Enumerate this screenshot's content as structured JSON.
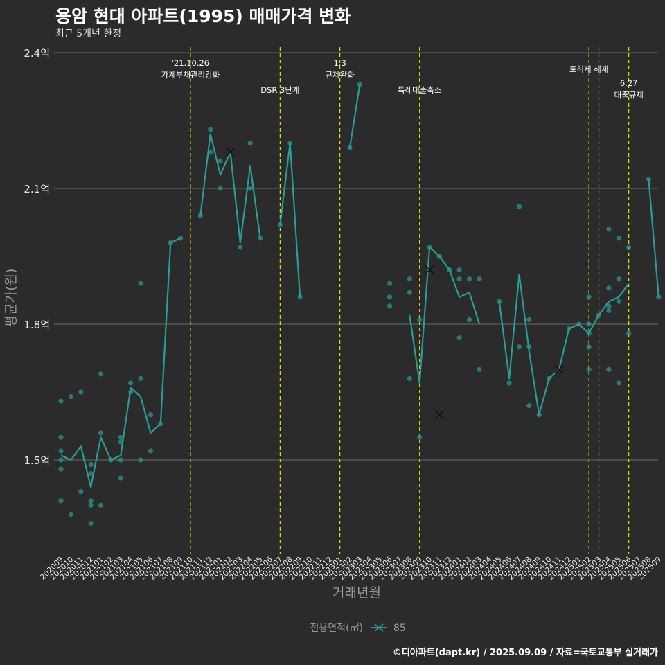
{
  "title": "용암 현대 아파트(1995) 매매가격 변화",
  "subtitle": "최근 5개년 한정",
  "caption": "©디아파트(dapt.kr) / 2025.09.09 / 자료=국토교통부 실거래가",
  "colors": {
    "background": "#2b2b2b",
    "series": "#2a9d97",
    "grid": "#6a6a6a",
    "event_line": "#e0e000",
    "text": "#ffffff",
    "axis_text": "#9a9a9a"
  },
  "chart_data": {
    "type": "line",
    "xlabel": "거래년월",
    "ylabel": "평균가(원)",
    "ylim": [
      1.2,
      2.4
    ],
    "y_ticks": [
      1.5,
      1.8,
      2.1,
      2.4
    ],
    "y_tick_labels": [
      "1.5억",
      "1.8억",
      "2.1억",
      "2.4억"
    ],
    "grid": true,
    "legend_position": "bottom",
    "legend_title": "전용면적(㎡)",
    "categories": [
      "202009",
      "202010",
      "202011",
      "202012",
      "202101",
      "202102",
      "202103",
      "202104",
      "202105",
      "202106",
      "202107",
      "202108",
      "202109",
      "202110",
      "202111",
      "202112",
      "202201",
      "202202",
      "202203",
      "202204",
      "202205",
      "202206",
      "202207",
      "202208",
      "202209",
      "202210",
      "202211",
      "202212",
      "202301",
      "202302",
      "202303",
      "202304",
      "202305",
      "202306",
      "202307",
      "202308",
      "202309",
      "202310",
      "202311",
      "202312",
      "202401",
      "202402",
      "202403",
      "202404",
      "202405",
      "202406",
      "202407",
      "202408",
      "202409",
      "202410",
      "202411",
      "202412",
      "202501",
      "202502",
      "202503",
      "202504",
      "202505",
      "202506",
      "202507",
      "202508",
      "202509"
    ],
    "series": [
      {
        "name": "85",
        "values": [
          1.51,
          1.5,
          1.53,
          1.44,
          1.55,
          1.5,
          1.51,
          1.66,
          1.64,
          1.56,
          1.58,
          1.98,
          1.99,
          null,
          2.04,
          2.22,
          2.13,
          2.18,
          1.98,
          2.15,
          1.99,
          null,
          2.02,
          2.2,
          1.86,
          null,
          null,
          null,
          null,
          2.19,
          2.33,
          null,
          null,
          null,
          null,
          1.82,
          1.67,
          1.97,
          1.95,
          1.92,
          1.86,
          1.87,
          1.8,
          null,
          1.85,
          1.68,
          1.91,
          1.74,
          1.6,
          1.68,
          1.7,
          1.79,
          1.8,
          1.78,
          1.82,
          1.85,
          1.86,
          1.89,
          null,
          2.12,
          1.86
        ]
      }
    ],
    "scatter_points": [
      {
        "x": "202009",
        "y": 1.63
      },
      {
        "x": "202009",
        "y": 1.55
      },
      {
        "x": "202009",
        "y": 1.52
      },
      {
        "x": "202009",
        "y": 1.5
      },
      {
        "x": "202009",
        "y": 1.48
      },
      {
        "x": "202009",
        "y": 1.41
      },
      {
        "x": "202010",
        "y": 1.64
      },
      {
        "x": "202010",
        "y": 1.38
      },
      {
        "x": "202011",
        "y": 1.65
      },
      {
        "x": "202011",
        "y": 1.43
      },
      {
        "x": "202012",
        "y": 1.49
      },
      {
        "x": "202012",
        "y": 1.47
      },
      {
        "x": "202012",
        "y": 1.41
      },
      {
        "x": "202012",
        "y": 1.4
      },
      {
        "x": "202012",
        "y": 1.36
      },
      {
        "x": "202101",
        "y": 1.69
      },
      {
        "x": "202101",
        "y": 1.56
      },
      {
        "x": "202101",
        "y": 1.4
      },
      {
        "x": "202102",
        "y": 1.5
      },
      {
        "x": "202103",
        "y": 1.55
      },
      {
        "x": "202103",
        "y": 1.54
      },
      {
        "x": "202103",
        "y": 1.5
      },
      {
        "x": "202103",
        "y": 1.46
      },
      {
        "x": "202104",
        "y": 1.67
      },
      {
        "x": "202104",
        "y": 1.65
      },
      {
        "x": "202105",
        "y": 1.89
      },
      {
        "x": "202105",
        "y": 1.68
      },
      {
        "x": "202105",
        "y": 1.5
      },
      {
        "x": "202106",
        "y": 1.6
      },
      {
        "x": "202106",
        "y": 1.52
      },
      {
        "x": "202107",
        "y": 1.58
      },
      {
        "x": "202108",
        "y": 1.98
      },
      {
        "x": "202109",
        "y": 1.99
      },
      {
        "x": "202111",
        "y": 2.04
      },
      {
        "x": "202112",
        "y": 2.23
      },
      {
        "x": "202112",
        "y": 2.18
      },
      {
        "x": "202201",
        "y": 2.16
      },
      {
        "x": "202201",
        "y": 2.1
      },
      {
        "x": "202203",
        "y": 1.97
      },
      {
        "x": "202204",
        "y": 2.2
      },
      {
        "x": "202204",
        "y": 2.1
      },
      {
        "x": "202205",
        "y": 1.99
      },
      {
        "x": "202207",
        "y": 2.02
      },
      {
        "x": "202208",
        "y": 2.2
      },
      {
        "x": "202209",
        "y": 1.86
      },
      {
        "x": "202302",
        "y": 2.19
      },
      {
        "x": "202303",
        "y": 2.33
      },
      {
        "x": "202306",
        "y": 1.89
      },
      {
        "x": "202306",
        "y": 1.86
      },
      {
        "x": "202306",
        "y": 1.84
      },
      {
        "x": "202308",
        "y": 1.9
      },
      {
        "x": "202308",
        "y": 1.87
      },
      {
        "x": "202308",
        "y": 1.68
      },
      {
        "x": "202309",
        "y": 1.81
      },
      {
        "x": "202309",
        "y": 1.55
      },
      {
        "x": "202310",
        "y": 1.97
      },
      {
        "x": "202311",
        "y": 1.95
      },
      {
        "x": "202312",
        "y": 1.92
      },
      {
        "x": "202401",
        "y": 1.92
      },
      {
        "x": "202401",
        "y": 1.9
      },
      {
        "x": "202401",
        "y": 1.77
      },
      {
        "x": "202402",
        "y": 1.9
      },
      {
        "x": "202402",
        "y": 1.81
      },
      {
        "x": "202403",
        "y": 1.9
      },
      {
        "x": "202403",
        "y": 1.7
      },
      {
        "x": "202405",
        "y": 1.85
      },
      {
        "x": "202406",
        "y": 1.67
      },
      {
        "x": "202407",
        "y": 2.06
      },
      {
        "x": "202407",
        "y": 1.75
      },
      {
        "x": "202408",
        "y": 1.81
      },
      {
        "x": "202408",
        "y": 1.75
      },
      {
        "x": "202408",
        "y": 1.62
      },
      {
        "x": "202409",
        "y": 1.6
      },
      {
        "x": "202410",
        "y": 1.68
      },
      {
        "x": "202412",
        "y": 1.79
      },
      {
        "x": "202501",
        "y": 1.8
      },
      {
        "x": "202502",
        "y": 1.86
      },
      {
        "x": "202502",
        "y": 1.8
      },
      {
        "x": "202502",
        "y": 1.78
      },
      {
        "x": "202502",
        "y": 1.75
      },
      {
        "x": "202502",
        "y": 1.7
      },
      {
        "x": "202503",
        "y": 1.82
      },
      {
        "x": "202504",
        "y": 2.01
      },
      {
        "x": "202504",
        "y": 1.88
      },
      {
        "x": "202504",
        "y": 1.84
      },
      {
        "x": "202504",
        "y": 1.83
      },
      {
        "x": "202504",
        "y": 1.7
      },
      {
        "x": "202505",
        "y": 1.99
      },
      {
        "x": "202505",
        "y": 1.9
      },
      {
        "x": "202505",
        "y": 1.85
      },
      {
        "x": "202505",
        "y": 1.67
      },
      {
        "x": "202506",
        "y": 1.97
      },
      {
        "x": "202506",
        "y": 1.78
      },
      {
        "x": "202508",
        "y": 2.12
      },
      {
        "x": "202509",
        "y": 1.86
      }
    ],
    "x_markers": [
      {
        "x": "202310",
        "y": 1.92
      },
      {
        "x": "202311",
        "y": 1.6
      },
      {
        "x": "202202",
        "y": 2.18
      },
      {
        "x": "202411",
        "y": 1.7
      }
    ],
    "events": [
      {
        "x": "202110",
        "lines": [
          "'21.10.26",
          "가계부채관리강화"
        ],
        "level": "high"
      },
      {
        "x": "202207",
        "lines": [
          "DSR 3단계"
        ],
        "level": "low"
      },
      {
        "x": "202301",
        "lines": [
          "1.3",
          "규제완화"
        ],
        "level": "high"
      },
      {
        "x": "202309",
        "lines": [
          "특례대출축소"
        ],
        "level": "low"
      },
      {
        "x": "202502",
        "lines": [
          "토허제 해제"
        ],
        "level": "mid"
      },
      {
        "x": "202503",
        "lines": [],
        "level": "none"
      },
      {
        "x": "202506",
        "lines": [
          "6.27",
          "대출규제"
        ],
        "level": "lower"
      }
    ]
  }
}
